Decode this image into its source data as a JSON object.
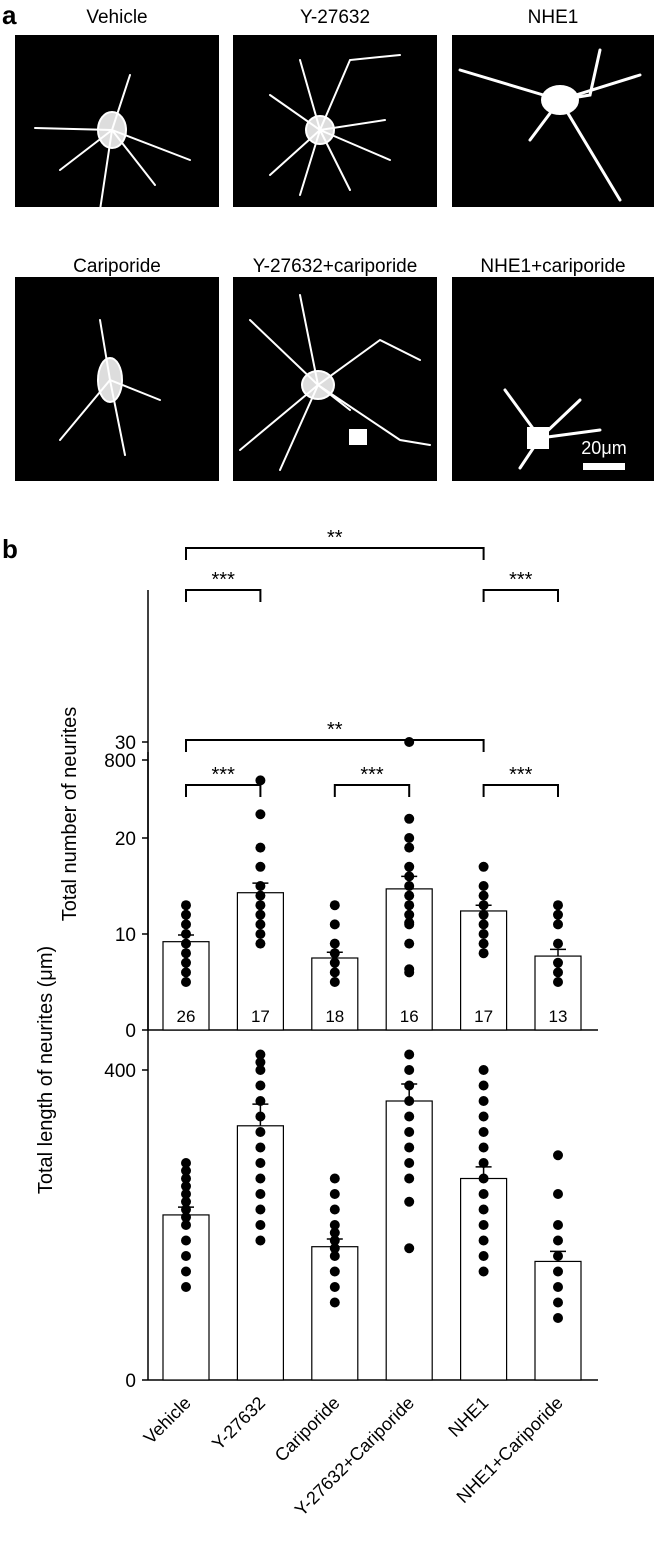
{
  "panel_a": {
    "label": "a",
    "images": [
      {
        "title": "Vehicle"
      },
      {
        "title": "Y-27632"
      },
      {
        "title": "NHE1"
      },
      {
        "title": "Cariporide"
      },
      {
        "title": "Y-27632+cariporide"
      },
      {
        "title": "NHE1+cariporide"
      }
    ],
    "scale_bar": "20μm"
  },
  "panel_b": {
    "label": "b"
  },
  "chart_data": [
    {
      "type": "bar",
      "y_label": "Total number of neurites",
      "categories": [
        null,
        null,
        null,
        null,
        null,
        null
      ],
      "values": [
        9.2,
        14.3,
        7.5,
        14.7,
        12.4,
        7.7
      ],
      "errors": [
        0.7,
        1.0,
        0.6,
        1.3,
        0.6,
        0.7
      ],
      "points": [
        [
          5,
          6,
          7,
          8,
          9,
          10,
          11,
          12,
          13
        ],
        [
          9,
          10,
          11,
          12,
          13,
          14,
          15,
          17,
          19,
          26
        ],
        [
          5,
          6,
          7,
          8,
          9,
          11,
          13
        ],
        [
          6,
          9,
          11,
          12,
          13,
          14,
          15,
          16,
          17,
          19,
          20,
          22,
          30
        ],
        [
          8,
          9,
          10,
          11,
          12,
          13,
          14,
          15,
          17
        ],
        [
          5,
          6,
          7,
          9,
          11,
          12,
          13
        ]
      ],
      "n": [
        26,
        17,
        18,
        16,
        17,
        13
      ],
      "brackets": [
        {
          "start": 0,
          "end": 4,
          "label": "**"
        },
        {
          "start": 0,
          "end": 1,
          "label": "***"
        },
        {
          "start": 4,
          "end": 5,
          "label": "***"
        }
      ],
      "ylim": [
        0,
        45
      ],
      "yticks": [
        0,
        10,
        20,
        30
      ],
      "color": "#ffffff"
    },
    {
      "type": "bar",
      "y_label": "Total length of neurites (μm)",
      "categories": [
        "Vehicle",
        "Y-27632",
        "Cariporide",
        "Y-27632+Cariporide",
        "NHE1",
        "NHE1+Cariporide"
      ],
      "values": [
        213,
        328,
        172,
        360,
        260,
        153
      ],
      "errors": [
        10,
        28,
        10,
        22,
        15,
        13
      ],
      "points": [
        [
          120,
          140,
          160,
          180,
          200,
          210,
          220,
          230,
          240,
          250,
          260,
          270,
          280
        ],
        [
          180,
          200,
          220,
          240,
          260,
          280,
          300,
          320,
          340,
          360,
          380,
          400,
          410,
          420,
          730
        ],
        [
          100,
          120,
          140,
          160,
          170,
          180,
          190,
          200,
          220,
          240,
          260
        ],
        [
          170,
          230,
          260,
          280,
          300,
          320,
          340,
          360,
          380,
          400,
          420,
          530,
          590
        ],
        [
          140,
          160,
          180,
          200,
          220,
          240,
          260,
          280,
          300,
          320,
          340,
          360,
          380,
          400
        ],
        [
          80,
          100,
          120,
          140,
          160,
          180,
          200,
          240,
          290
        ]
      ],
      "brackets": [
        {
          "start": 0,
          "end": 4,
          "label": "**"
        },
        {
          "start": 0,
          "end": 1,
          "label": "***"
        },
        {
          "start": 2,
          "end": 3,
          "label": "***"
        },
        {
          "start": 4,
          "end": 5,
          "label": "***"
        }
      ],
      "ylim": [
        0,
        800
      ],
      "yticks": [
        0,
        400,
        800
      ],
      "color": "#ffffff"
    }
  ]
}
